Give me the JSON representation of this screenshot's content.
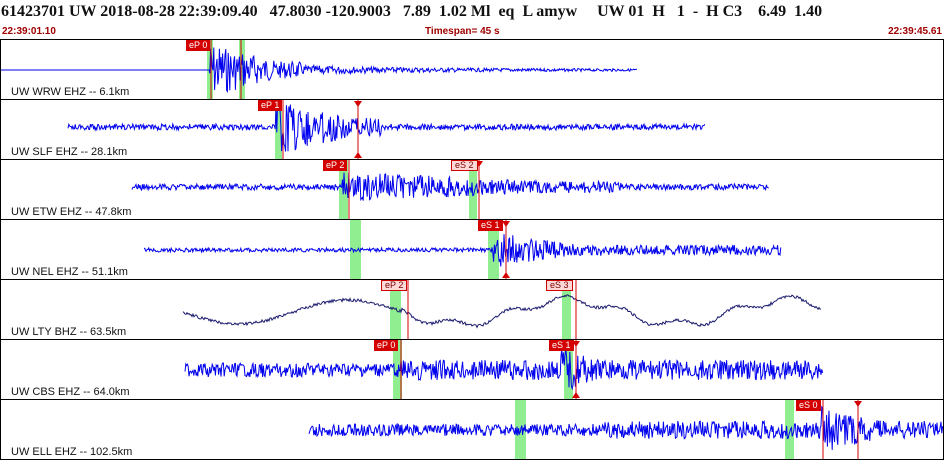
{
  "header": {
    "event_summary": "61423701 UW 2018-08-28 22:39:09.40   47.8030 -120.9003   7.89  1.02 Ml  eq  L amyw     UW 01  H   1  -  H C3    6.49  1.40"
  },
  "timebar": {
    "start": "22:39:01.10",
    "timespan": "Timespan=  45 s",
    "end": "22:39:45.61"
  },
  "colors": {
    "trace": "#0000ee",
    "long_period_trace": "#1a1a6e",
    "pick": "#d40000",
    "window": "#90ee90",
    "frame": "#000000"
  },
  "traces": [
    {
      "label": "UW WRW EHZ -- 6.1km",
      "picks": [
        {
          "text": "eP 0",
          "style": "solid"
        }
      ]
    },
    {
      "label": "UW SLF EHZ -- 28.1km",
      "picks": [
        {
          "text": "eP 1",
          "style": "solid"
        }
      ]
    },
    {
      "label": "UW ETW EHZ -- 47.8km",
      "picks": [
        {
          "text": "eP 2",
          "style": "solid"
        },
        {
          "text": "eS 2",
          "style": "outline"
        }
      ]
    },
    {
      "label": "UW NEL EHZ -- 51.1km",
      "picks": [
        {
          "text": "eS 1",
          "style": "solid"
        }
      ]
    },
    {
      "label": "UW LTY BHZ -- 63.5km",
      "picks": [
        {
          "text": "eP 2",
          "style": "outline"
        },
        {
          "text": "eS 3",
          "style": "outline"
        }
      ]
    },
    {
      "label": "UW CBS EHZ -- 64.0km",
      "picks": [
        {
          "text": "eP 0",
          "style": "solid"
        },
        {
          "text": "eS 1",
          "style": "solid"
        }
      ]
    },
    {
      "label": "UW ELL EHZ -- 102.5km",
      "picks": [
        {
          "text": "eS 0",
          "style": "solid"
        }
      ]
    }
  ]
}
